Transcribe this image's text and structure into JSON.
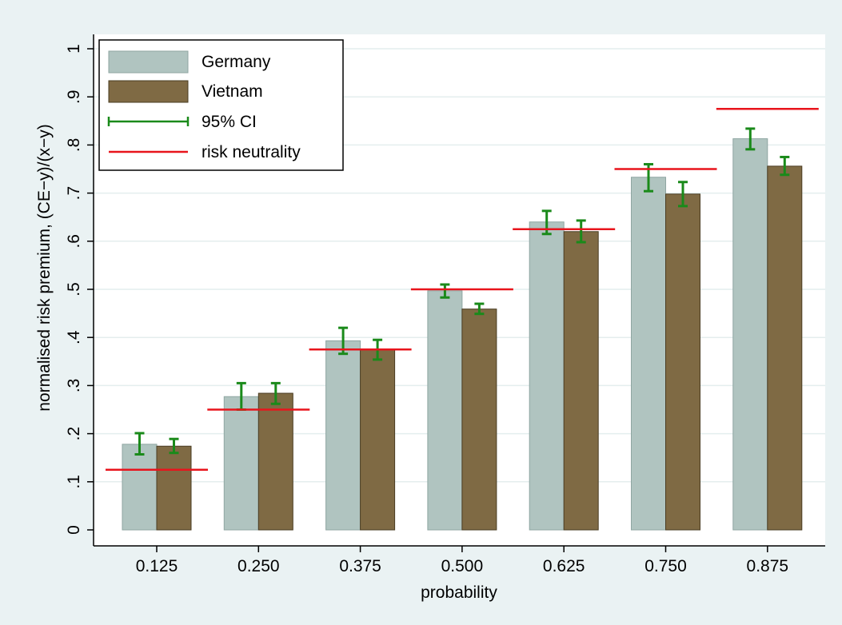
{
  "chart_data": {
    "type": "bar",
    "title": "",
    "xlabel": "probability",
    "ylabel": "normalised risk premium, (CE−y)/(x−y)",
    "categories": [
      "0.125",
      "0.250",
      "0.375",
      "0.500",
      "0.625",
      "0.750",
      "0.875"
    ],
    "risk_neutral_values": [
      0.125,
      0.25,
      0.375,
      0.5,
      0.625,
      0.75,
      0.875
    ],
    "series": [
      {
        "name": "Germany",
        "color": "#b0c4c0",
        "values": [
          0.178,
          0.277,
          0.393,
          0.497,
          0.64,
          0.733,
          0.813
        ],
        "ci_low": [
          0.157,
          0.25,
          0.366,
          0.483,
          0.615,
          0.704,
          0.791
        ],
        "ci_high": [
          0.201,
          0.305,
          0.42,
          0.51,
          0.663,
          0.76,
          0.834
        ]
      },
      {
        "name": "Vietnam",
        "color": "#7f6a44",
        "values": [
          0.174,
          0.284,
          0.376,
          0.459,
          0.62,
          0.698,
          0.756
        ],
        "ci_low": [
          0.16,
          0.262,
          0.354,
          0.449,
          0.598,
          0.673,
          0.738
        ],
        "ci_high": [
          0.189,
          0.305,
          0.395,
          0.47,
          0.643,
          0.723,
          0.775
        ]
      }
    ],
    "ci_label": "95% CI",
    "ci_color": "#1a8a1a",
    "risk_neutrality_label": "risk neutrality",
    "risk_neutrality_color": "#e8141c",
    "ylim": [
      0,
      1
    ],
    "yticks": [
      0,
      0.1,
      0.2,
      0.3,
      0.4,
      0.5,
      0.6,
      0.7,
      0.8,
      0.9,
      1
    ],
    "ytick_labels": [
      "0",
      ".1",
      ".2",
      ".3",
      ".4",
      ".5",
      ".6",
      ".7",
      ".8",
      ".9",
      "1"
    ],
    "grid": true,
    "legend_position": "top-left"
  }
}
